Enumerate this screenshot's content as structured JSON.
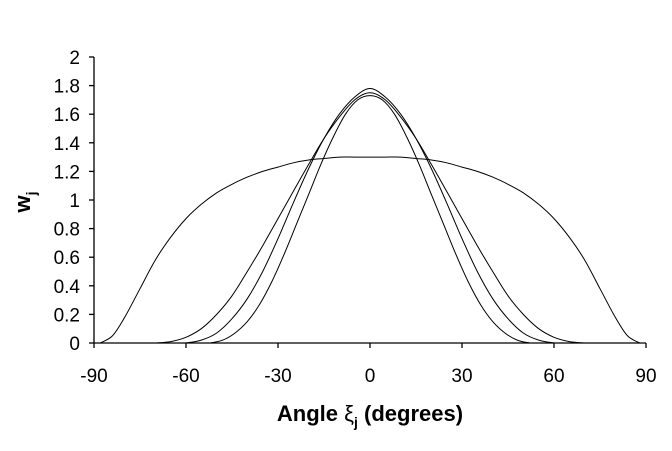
{
  "chart_data": {
    "type": "line",
    "title": "",
    "xlabel_main": "Angle ",
    "xlabel_symbol": "ξ",
    "xlabel_sub": "j",
    "xlabel_tail": " (degrees)",
    "ylabel_main": "w",
    "ylabel_sub": "j",
    "xlim": [
      -90,
      90
    ],
    "ylim": [
      0,
      2
    ],
    "xticks": [
      -90,
      -60,
      -30,
      0,
      30,
      60,
      90
    ],
    "yticks": [
      0,
      0.2,
      0.4,
      0.6,
      0.8,
      1,
      1.2,
      1.4,
      1.6,
      1.8,
      2
    ],
    "xtick_labels": [
      "-90",
      "-60",
      "-30",
      "0",
      "30",
      "60",
      "90"
    ],
    "ytick_labels": [
      "0",
      "0.2",
      "0.4",
      "0.6",
      "0.8",
      "1",
      "1.2",
      "1.4",
      "1.6",
      "1.8",
      "2"
    ],
    "grid": false,
    "color": "#000000",
    "series": [
      {
        "x": [
          -88,
          -84,
          -80,
          -75,
          -70,
          -65,
          -60,
          -55,
          -50,
          -45,
          -40,
          -35,
          -30,
          -25,
          -20,
          -15,
          -10,
          -5,
          0,
          5,
          10,
          15,
          20,
          25,
          30,
          35,
          40,
          45,
          50,
          55,
          60,
          65,
          70,
          75,
          80,
          84,
          88
        ],
        "y": [
          0,
          0.05,
          0.18,
          0.38,
          0.58,
          0.74,
          0.87,
          0.97,
          1.05,
          1.11,
          1.16,
          1.2,
          1.23,
          1.26,
          1.28,
          1.29,
          1.3,
          1.3,
          1.3,
          1.3,
          1.3,
          1.29,
          1.28,
          1.26,
          1.23,
          1.2,
          1.16,
          1.11,
          1.05,
          0.97,
          0.87,
          0.74,
          0.58,
          0.38,
          0.18,
          0.05,
          0
        ]
      },
      {
        "x": [
          -70,
          -65,
          -60,
          -55,
          -50,
          -45,
          -40,
          -35,
          -30,
          -25,
          -20,
          -15,
          -10,
          -5,
          0,
          5,
          10,
          15,
          20,
          25,
          30,
          35,
          40,
          45,
          50,
          55,
          60,
          65,
          70
        ],
        "y": [
          0,
          0.01,
          0.04,
          0.1,
          0.2,
          0.33,
          0.5,
          0.68,
          0.87,
          1.06,
          1.25,
          1.43,
          1.58,
          1.7,
          1.75,
          1.7,
          1.58,
          1.43,
          1.25,
          1.06,
          0.87,
          0.68,
          0.5,
          0.33,
          0.2,
          0.1,
          0.04,
          0.01,
          0
        ]
      },
      {
        "x": [
          -60,
          -55,
          -50,
          -45,
          -40,
          -35,
          -30,
          -25,
          -20,
          -15,
          -10,
          -5,
          0,
          5,
          10,
          15,
          20,
          25,
          30,
          35,
          40,
          45,
          50,
          55,
          60
        ],
        "y": [
          0,
          0.02,
          0.07,
          0.17,
          0.31,
          0.5,
          0.73,
          0.98,
          1.22,
          1.43,
          1.6,
          1.72,
          1.78,
          1.72,
          1.6,
          1.43,
          1.22,
          0.98,
          0.73,
          0.5,
          0.31,
          0.17,
          0.07,
          0.02,
          0
        ]
      },
      {
        "x": [
          -52,
          -48,
          -44,
          -40,
          -36,
          -32,
          -28,
          -24,
          -20,
          -16,
          -12,
          -8,
          -4,
          0,
          4,
          8,
          12,
          16,
          20,
          24,
          28,
          32,
          36,
          40,
          44,
          48,
          52
        ],
        "y": [
          0,
          0.02,
          0.07,
          0.15,
          0.27,
          0.43,
          0.62,
          0.83,
          1.04,
          1.25,
          1.44,
          1.6,
          1.7,
          1.73,
          1.7,
          1.6,
          1.44,
          1.25,
          1.04,
          0.83,
          0.62,
          0.43,
          0.27,
          0.15,
          0.07,
          0.02,
          0
        ]
      }
    ]
  }
}
